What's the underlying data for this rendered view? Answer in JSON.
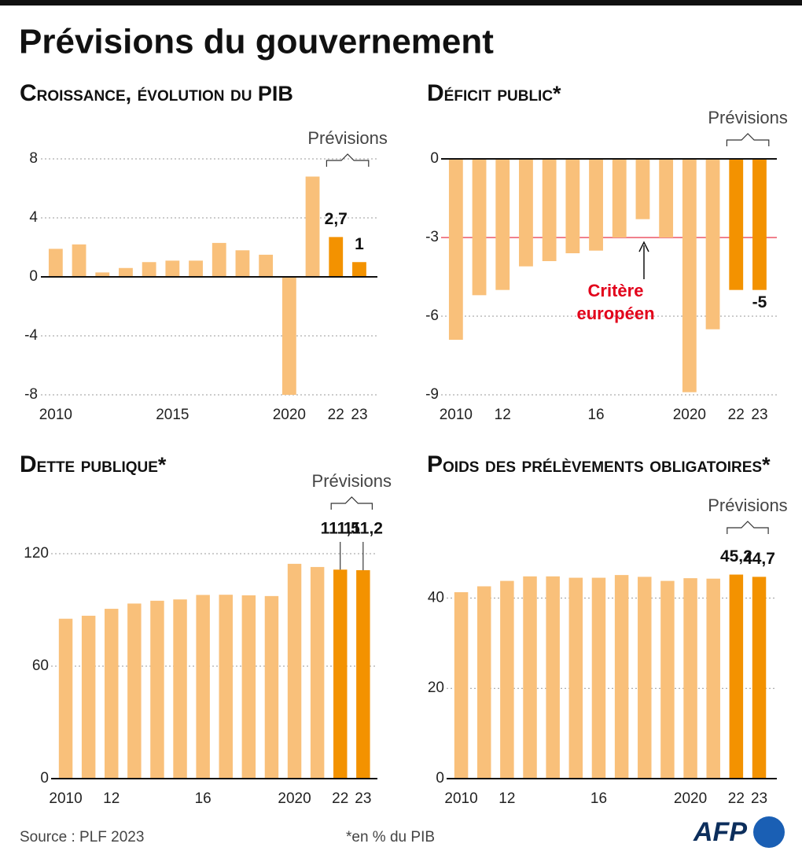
{
  "title": "Prévisions du gouvernement",
  "chart_data": [
    {
      "type": "bar",
      "title": "Croissance, évolution du PIB",
      "categories": [
        "2010",
        null,
        null,
        null,
        null,
        "2015",
        null,
        null,
        null,
        null,
        "2020",
        null,
        "22",
        "23"
      ],
      "values": [
        1.9,
        2.2,
        0.3,
        0.6,
        1.0,
        1.1,
        1.1,
        2.3,
        1.8,
        1.5,
        -8,
        6.8,
        2.7,
        1
      ],
      "value_labels": [
        null,
        null,
        null,
        null,
        null,
        null,
        null,
        null,
        null,
        null,
        null,
        null,
        "2,7",
        "1"
      ],
      "colors": [
        "#f9c07a",
        "#f9c07a",
        "#f9c07a",
        "#f9c07a",
        "#f9c07a",
        "#f9c07a",
        "#f9c07a",
        "#f9c07a",
        "#f9c07a",
        "#f9c07a",
        "#f9c07a",
        "#f9c07a",
        "#f39200",
        "#f39200"
      ],
      "annotation": "Prévisions",
      "ylim": [
        -8,
        8
      ],
      "yticks": [
        -8,
        -4,
        0,
        4,
        8
      ],
      "grid": true
    },
    {
      "type": "bar",
      "title": "Déficit public*",
      "categories": [
        "2010",
        null,
        "12",
        null,
        null,
        null,
        "16",
        null,
        null,
        null,
        "2020",
        null,
        "22",
        "23"
      ],
      "values": [
        -6.9,
        -5.2,
        -5.0,
        -4.1,
        -3.9,
        -3.6,
        -3.5,
        -3.0,
        -2.3,
        -3.0,
        -8.9,
        -6.5,
        -5,
        -5
      ],
      "value_labels": [
        null,
        null,
        null,
        null,
        null,
        null,
        null,
        null,
        null,
        null,
        null,
        null,
        null,
        "-5"
      ],
      "colors": [
        "#f9c07a",
        "#f9c07a",
        "#f9c07a",
        "#f9c07a",
        "#f9c07a",
        "#f9c07a",
        "#f9c07a",
        "#f9c07a",
        "#f9c07a",
        "#f9c07a",
        "#f9c07a",
        "#f9c07a",
        "#f39200",
        "#f39200"
      ],
      "annotation": "Prévisions",
      "reference_line": {
        "value": -3,
        "label": [
          "Critère",
          "européen"
        ],
        "color": "#e2001a"
      },
      "ylim": [
        -9,
        0
      ],
      "yticks": [
        -9,
        -6,
        -3,
        0
      ],
      "grid": true
    },
    {
      "type": "bar",
      "title": "Dette publique*",
      "categories": [
        "2010",
        null,
        "12",
        null,
        null,
        null,
        "16",
        null,
        null,
        null,
        "2020",
        null,
        "22",
        "23"
      ],
      "values": [
        85.3,
        86.9,
        90.6,
        93.4,
        94.9,
        95.6,
        98.0,
        98.1,
        97.8,
        97.4,
        114.6,
        112.9,
        111.5,
        111.2
      ],
      "value_labels": [
        null,
        null,
        null,
        null,
        null,
        null,
        null,
        null,
        null,
        null,
        null,
        null,
        "111,5",
        "111,2"
      ],
      "colors": [
        "#f9c07a",
        "#f9c07a",
        "#f9c07a",
        "#f9c07a",
        "#f9c07a",
        "#f9c07a",
        "#f9c07a",
        "#f9c07a",
        "#f9c07a",
        "#f9c07a",
        "#f9c07a",
        "#f9c07a",
        "#f39200",
        "#f39200"
      ],
      "annotation": "Prévisions",
      "ylim": [
        0,
        120
      ],
      "yticks": [
        0,
        60,
        120
      ],
      "grid": true
    },
    {
      "type": "bar",
      "title": "Poids des prélèvements obligatoires*",
      "categories": [
        "2010",
        null,
        "12",
        null,
        null,
        null,
        "16",
        null,
        null,
        null,
        "2020",
        null,
        "22",
        "23"
      ],
      "values": [
        41.3,
        42.6,
        43.8,
        44.8,
        44.8,
        44.5,
        44.5,
        45.1,
        44.7,
        43.8,
        44.4,
        44.3,
        45.2,
        44.7
      ],
      "value_labels": [
        null,
        null,
        null,
        null,
        null,
        null,
        null,
        null,
        null,
        null,
        null,
        null,
        "45,2",
        "44,7"
      ],
      "colors": [
        "#f9c07a",
        "#f9c07a",
        "#f9c07a",
        "#f9c07a",
        "#f9c07a",
        "#f9c07a",
        "#f9c07a",
        "#f9c07a",
        "#f9c07a",
        "#f9c07a",
        "#f9c07a",
        "#f9c07a",
        "#f39200",
        "#f39200"
      ],
      "annotation": "Prévisions",
      "ylim": [
        0,
        50
      ],
      "yticks": [
        0,
        20,
        40
      ],
      "grid": true
    }
  ],
  "source": "Source : PLF 2023",
  "footnote": "*en % du PIB",
  "logo": "AFP"
}
